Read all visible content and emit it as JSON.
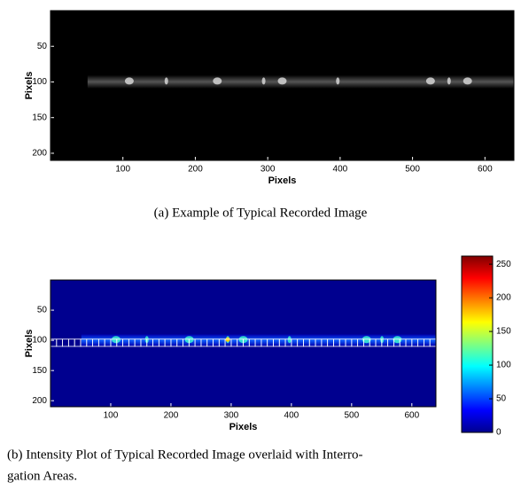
{
  "chart_data": [
    {
      "type": "image",
      "colormap": "gray",
      "xlabel": "Pixels",
      "ylabel": "Pixels",
      "xlim": [
        0,
        640
      ],
      "ylim": [
        0,
        210
      ],
      "xticks": [
        100,
        200,
        300,
        400,
        500,
        600
      ],
      "yticks": [
        50,
        100,
        150,
        200
      ],
      "caption": [
        "(a)  Example of Typical Recorded Image"
      ]
    },
    {
      "type": "heatmap",
      "colormap": "jet",
      "xlabel": "Pixels",
      "ylabel": "Pixels",
      "xlim": [
        0,
        640
      ],
      "ylim": [
        0,
        210
      ],
      "xticks": [
        100,
        200,
        300,
        400,
        500,
        600
      ],
      "yticks": [
        50,
        100,
        150,
        200
      ],
      "clim": [
        0,
        262
      ],
      "cticks": [
        0,
        50,
        100,
        150,
        200,
        250
      ],
      "overlay": {
        "ylim": [
          98,
          110
        ],
        "xstep": 10
      },
      "caption": [
        "(b)  Intensity Plot of Typical Recorded Image overlaid with Interro-",
        "gation Areas."
      ]
    }
  ]
}
